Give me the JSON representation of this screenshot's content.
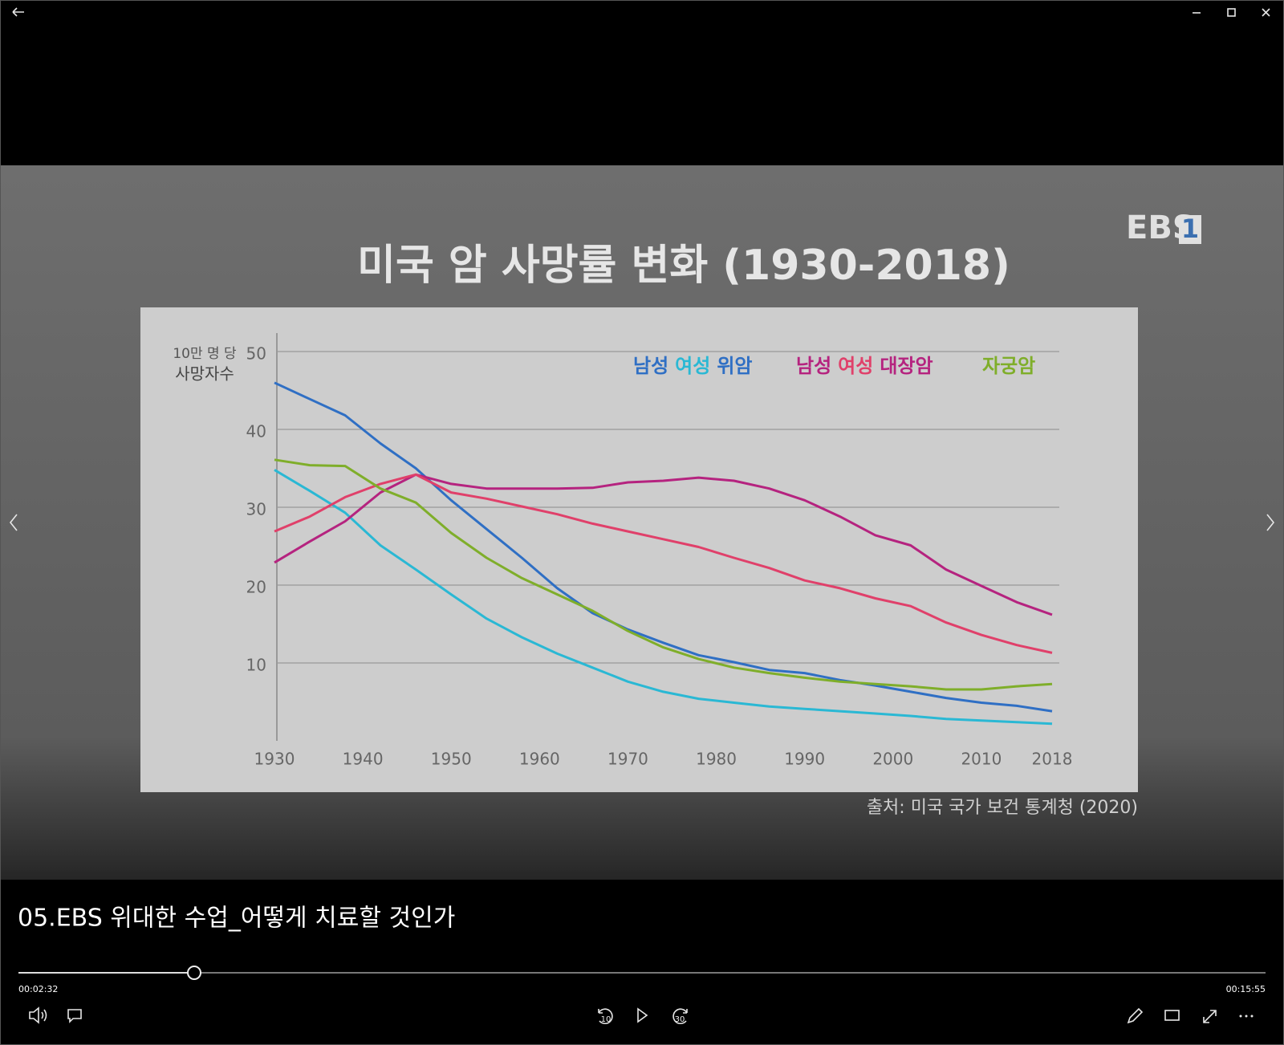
{
  "video": {
    "title": "05.EBS 위대한 수업_어떻게 치료할 것인가",
    "current_time": "00:02:32",
    "duration": "00:15:55"
  },
  "controls": {
    "skip_back": "10",
    "skip_forward": "30"
  },
  "chart_data": {
    "type": "line",
    "title": "미국 암 사망률 변화 (1930-2018)",
    "logo": "EBS",
    "channel": "1",
    "y_label": [
      "10만 명 당",
      "사망자수"
    ],
    "source": "출처: 미국 국가 보건 통계청 (2020)",
    "x": [
      1930,
      1934,
      1938,
      1942,
      1946,
      1950,
      1954,
      1958,
      1962,
      1966,
      1970,
      1974,
      1978,
      1982,
      1986,
      1990,
      1994,
      1998,
      2002,
      2006,
      2010,
      2014,
      2018
    ],
    "xlim": [
      1930,
      2018
    ],
    "xticks": [
      1930,
      1940,
      1950,
      1960,
      1970,
      1980,
      1990,
      2000,
      2010,
      2018
    ],
    "ylim": [
      0,
      50
    ],
    "yticks": [
      10,
      20,
      30,
      40,
      50
    ],
    "grid": true,
    "groups": [
      {
        "label": "위암",
        "color": "#2f6fc4",
        "series": [
          {
            "name": "남성",
            "color": "#2f6fc4",
            "values": [
              46,
              43.9,
              41.8,
              38.2,
              35,
              30.9,
              27.2,
              23.5,
              19.6,
              16.4,
              14.3,
              12.6,
              11,
              10.1,
              9.1,
              8.7,
              7.8,
              7.1,
              6.3,
              5.5,
              4.9,
              4.5,
              3.8
            ]
          },
          {
            "name": "여성",
            "color": "#2ab8d4",
            "values": [
              34.8,
              32.1,
              29.3,
              25.1,
              22,
              18.8,
              15.7,
              13.3,
              11.2,
              9.4,
              7.6,
              6.3,
              5.4,
              4.9,
              4.4,
              4.1,
              3.8,
              3.5,
              3.2,
              2.8,
              2.6,
              2.4,
              2.2
            ]
          }
        ]
      },
      {
        "label": "대장암",
        "color": "#b5237f",
        "series": [
          {
            "name": "남성",
            "color": "#b5237f",
            "values": [
              22.9,
              25.6,
              28.2,
              31.9,
              34.2,
              33,
              32.4,
              32.4,
              32.4,
              32.5,
              33.2,
              33.4,
              33.8,
              33.4,
              32.4,
              30.9,
              28.8,
              26.4,
              25.1,
              22,
              19.9,
              17.8,
              16.2
            ]
          },
          {
            "name": "여성",
            "color": "#e0406a",
            "values": [
              26.9,
              28.8,
              31.3,
              33,
              34.2,
              31.9,
              31.1,
              30.1,
              29.1,
              27.9,
              26.9,
              25.9,
              24.9,
              23.5,
              22.2,
              20.6,
              19.6,
              18.3,
              17.3,
              15.2,
              13.6,
              12.3,
              11.3
            ]
          }
        ]
      },
      {
        "label": "자궁암",
        "color": "#7fae2a",
        "series": [
          {
            "color": "#7fae2a",
            "values": [
              36.1,
              35.4,
              35.3,
              32.4,
              30.6,
              26.7,
              23.5,
              20.9,
              18.8,
              16.7,
              14.1,
              12,
              10.5,
              9.4,
              8.7,
              8.1,
              7.6,
              7.3,
              7,
              6.6,
              6.6,
              7,
              7.3
            ]
          }
        ]
      }
    ]
  }
}
